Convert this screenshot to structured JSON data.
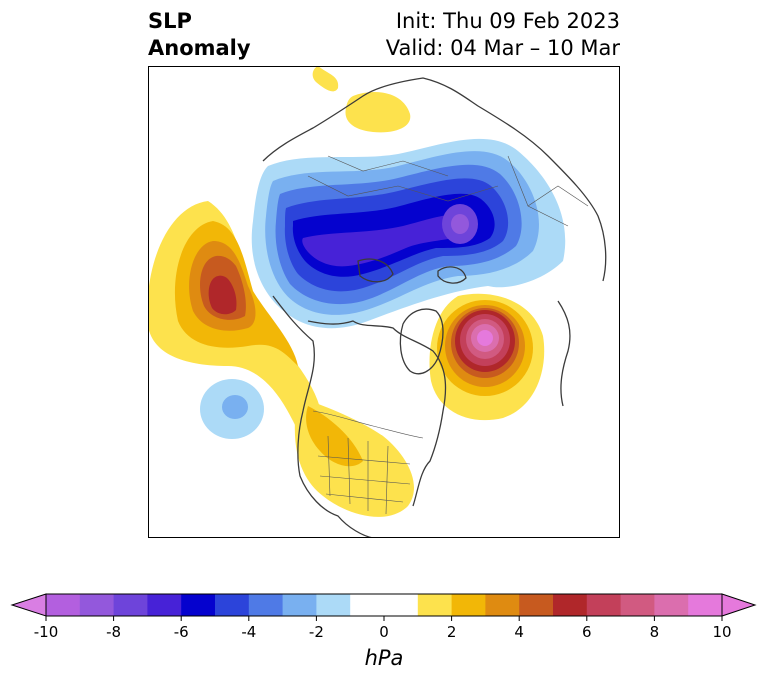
{
  "title": {
    "left_line1": "SLP",
    "left_line2": "Anomaly",
    "init": "Init: Thu 09 Feb 2023",
    "valid": "Valid: 04 Mar – 10 Mar"
  },
  "map": {
    "projection": "north-polar-stereographic",
    "region": "North America / Arctic",
    "features": [
      "coastlines",
      "country-borders",
      "us-state-borders",
      "canada-province-borders"
    ],
    "anomaly_centers": [
      {
        "sign": "negative",
        "region": "Eurasia / Siberia",
        "peak_hpa": -10
      },
      {
        "sign": "positive",
        "region": "North Pacific / Gulf of Alaska",
        "peak_hpa": 6
      },
      {
        "sign": "negative",
        "region": "Central North Pacific",
        "peak_hpa": -3
      },
      {
        "sign": "positive",
        "region": "Greenland / Labrador Sea",
        "peak_hpa": 10
      },
      {
        "sign": "positive",
        "region": "Contiguous United States",
        "peak_hpa": 2
      },
      {
        "sign": "positive",
        "region": "Northern Europe",
        "peak_hpa": 1
      }
    ]
  },
  "colorbar": {
    "unit": "hPa",
    "min": -10,
    "max": 10,
    "step": 1,
    "extend": "both",
    "ticks": [
      "-10",
      "-8",
      "-6",
      "-4",
      "-2",
      "0",
      "2",
      "4",
      "6",
      "8",
      "10"
    ],
    "under_color": "#d97ee3",
    "over_color": "#e579dc",
    "colors": [
      "#b35fdf",
      "#9358dc",
      "#6e44da",
      "#4722d7",
      "#0502ce",
      "#2c44da",
      "#4f7ae6",
      "#79b0f0",
      "#acdaf7",
      "#ffffff",
      "#ffffff",
      "#fde24d",
      "#f2b707",
      "#df8b11",
      "#c75a1f",
      "#b0272a",
      "#c3405a",
      "#d15a81",
      "#db6eae",
      "#e579dc"
    ]
  }
}
